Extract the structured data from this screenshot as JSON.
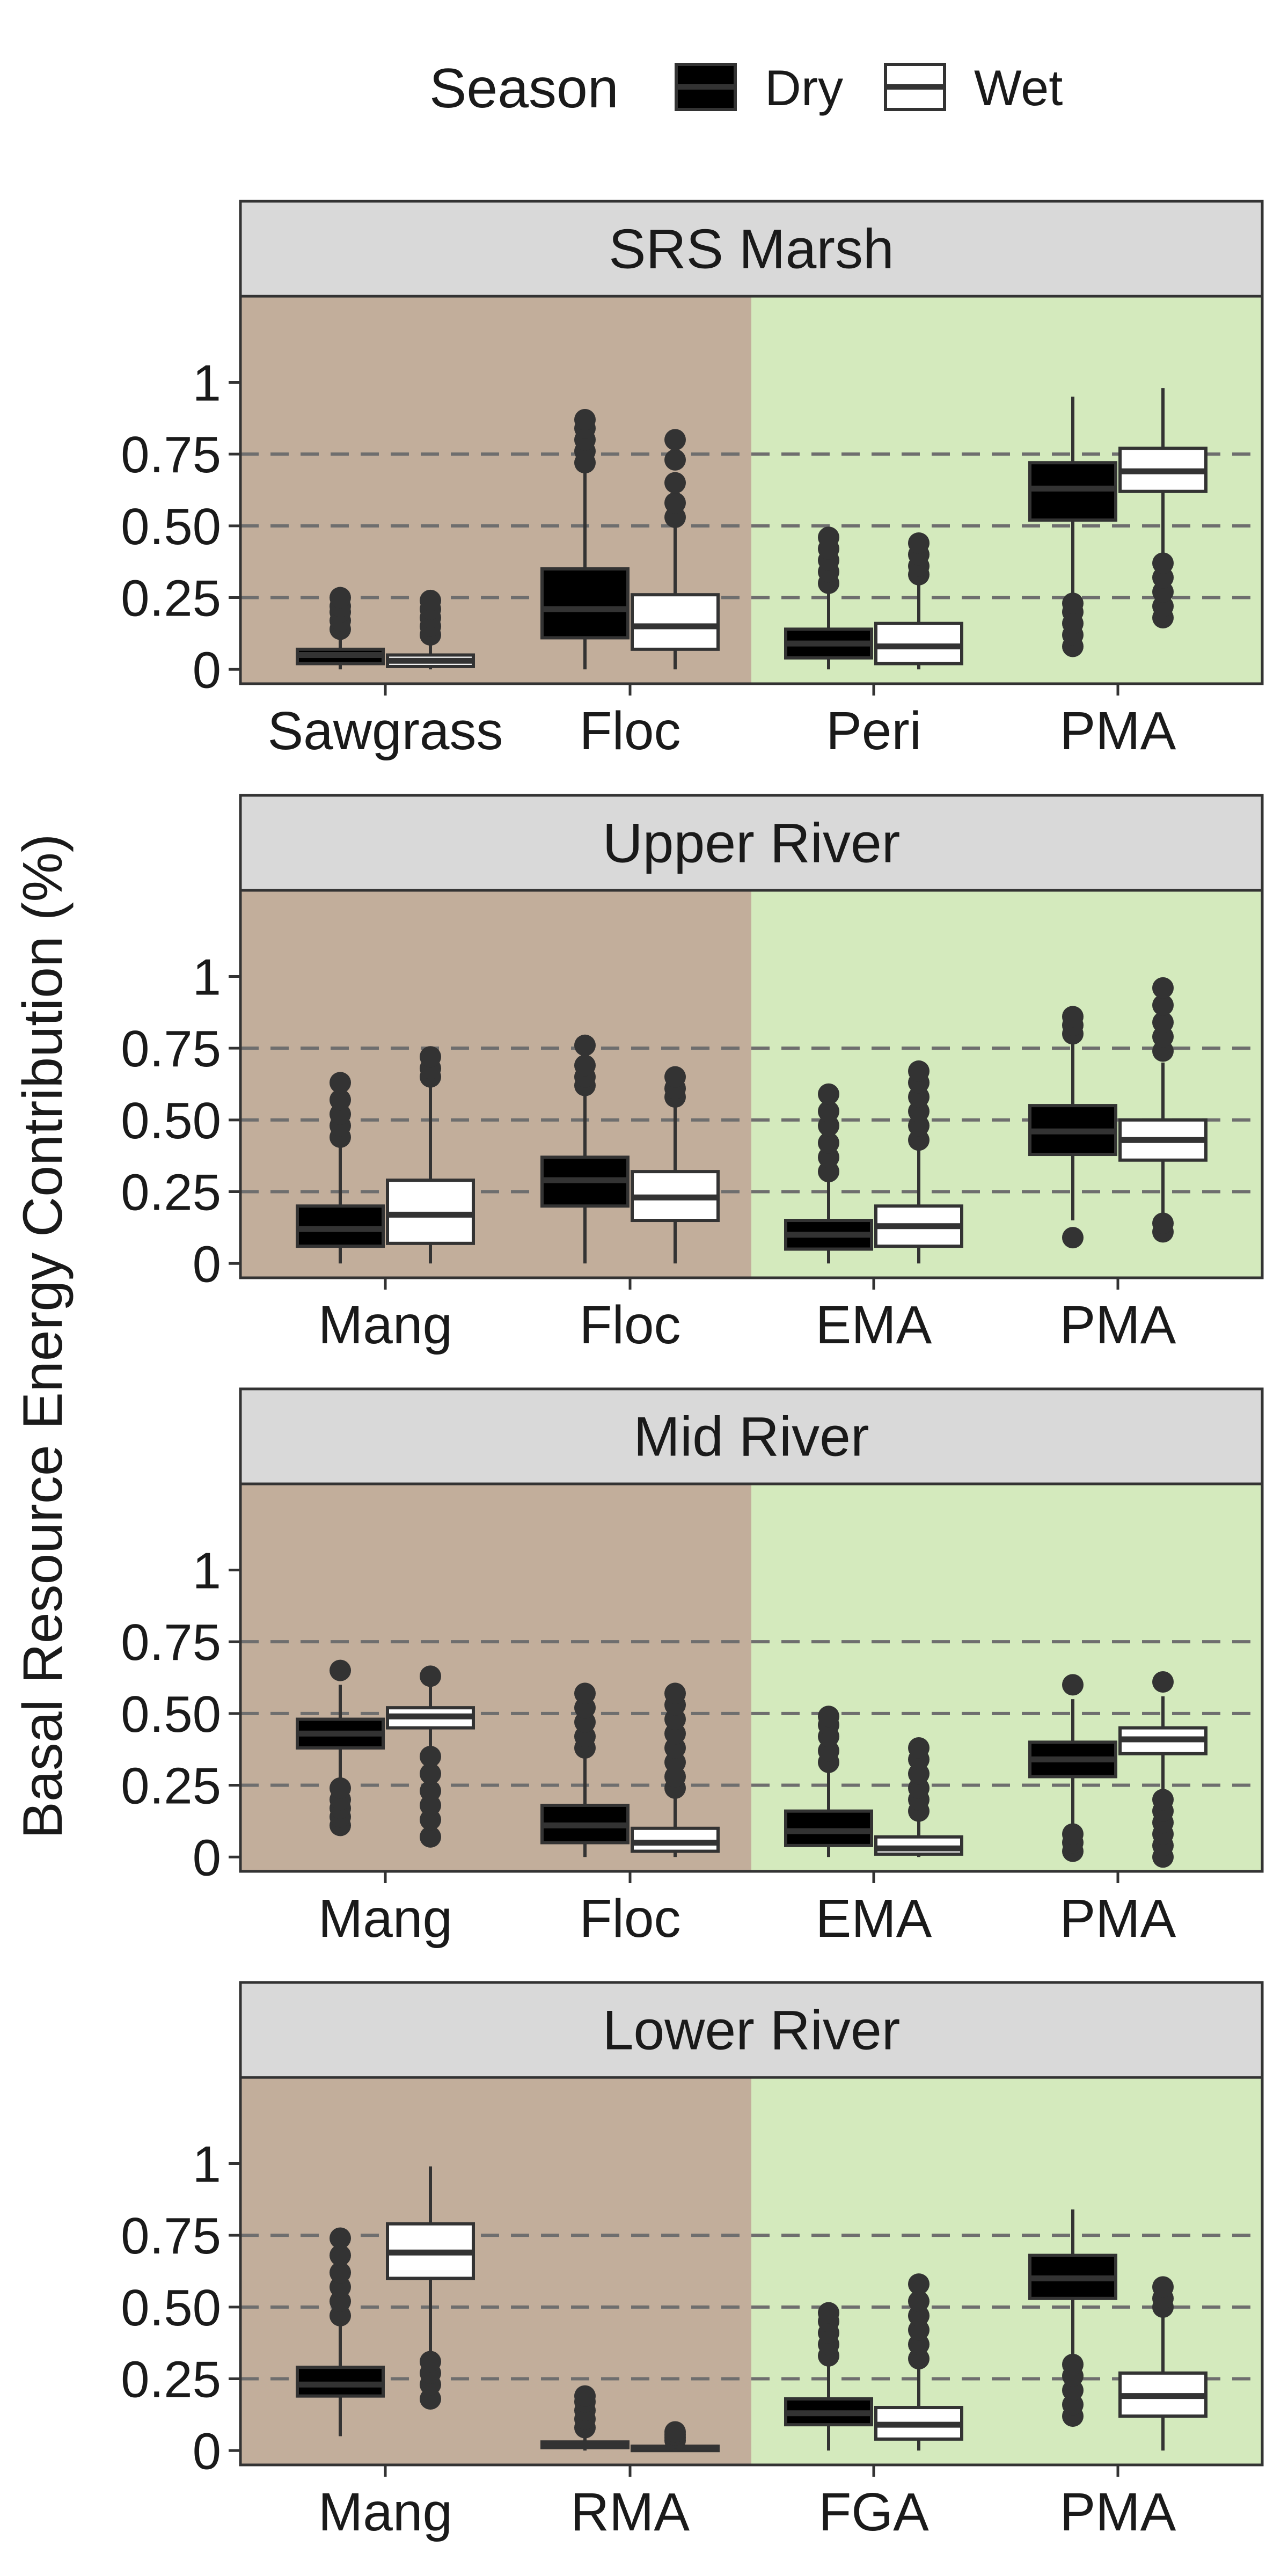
{
  "legend": {
    "title": "Season",
    "items": [
      {
        "label": "Dry",
        "fill": "#000000"
      },
      {
        "label": "Wet",
        "fill": "#ffffff"
      }
    ]
  },
  "ylabel": "Basal Resource Energy Contribution (%)",
  "colors": {
    "allochthonous_bg": "#c2ae9b",
    "autochthonous_bg": "#d4eabd",
    "strip_bg": "#d9d9d9",
    "dry_fill": "#000000",
    "wet_fill": "#ffffff",
    "outline": "#333333",
    "wet_median": "#333333",
    "dry_median": "#333333"
  },
  "chart_data": [
    {
      "type": "boxplot",
      "title": "SRS Marsh",
      "categories": [
        "Sawgrass",
        "Floc",
        "Peri",
        "PMA"
      ],
      "ylim": [
        -0.05,
        1.3
      ],
      "yticks": [
        0,
        0.25,
        0.5,
        0.75,
        1
      ],
      "ytick_labels": [
        "0",
        "0.25",
        "0.50",
        "0.75",
        "1"
      ],
      "gridlines": [
        0.25,
        0.5,
        0.75
      ],
      "series": [
        {
          "name": "Dry",
          "boxes": [
            {
              "min": 0.0,
              "q1": 0.02,
              "median": 0.05,
              "q3": 0.07,
              "max": 0.12,
              "outliers": [
                0.14,
                0.17,
                0.2,
                0.22,
                0.25
              ]
            },
            {
              "min": 0.0,
              "q1": 0.11,
              "median": 0.21,
              "q3": 0.35,
              "max": 0.7,
              "outliers": [
                0.72,
                0.76,
                0.8,
                0.84,
                0.87
              ]
            },
            {
              "min": 0.0,
              "q1": 0.04,
              "median": 0.09,
              "q3": 0.14,
              "max": 0.28,
              "outliers": [
                0.3,
                0.34,
                0.38,
                0.42,
                0.46
              ]
            },
            {
              "min": 0.23,
              "q1": 0.52,
              "median": 0.63,
              "q3": 0.72,
              "max": 0.95,
              "outliers": [
                0.08,
                0.12,
                0.16,
                0.2,
                0.23
              ]
            }
          ]
        },
        {
          "name": "Wet",
          "boxes": [
            {
              "min": 0.0,
              "q1": 0.01,
              "median": 0.03,
              "q3": 0.05,
              "max": 0.1,
              "outliers": [
                0.12,
                0.15,
                0.18,
                0.21,
                0.24
              ]
            },
            {
              "min": 0.0,
              "q1": 0.07,
              "median": 0.15,
              "q3": 0.26,
              "max": 0.5,
              "outliers": [
                0.53,
                0.58,
                0.65,
                0.73,
                0.8
              ]
            },
            {
              "min": 0.0,
              "q1": 0.02,
              "median": 0.08,
              "q3": 0.16,
              "max": 0.3,
              "outliers": [
                0.33,
                0.36,
                0.4,
                0.44
              ]
            },
            {
              "min": 0.38,
              "q1": 0.62,
              "median": 0.69,
              "q3": 0.77,
              "max": 0.98,
              "outliers": [
                0.18,
                0.22,
                0.27,
                0.32,
                0.37
              ]
            }
          ]
        }
      ]
    },
    {
      "type": "boxplot",
      "title": "Upper River",
      "categories": [
        "Mang",
        "Floc",
        "EMA",
        "PMA"
      ],
      "ylim": [
        -0.05,
        1.3
      ],
      "yticks": [
        0,
        0.25,
        0.5,
        0.75,
        1
      ],
      "ytick_labels": [
        "0",
        "0.25",
        "0.50",
        "0.75",
        "1"
      ],
      "gridlines": [
        0.25,
        0.5,
        0.75
      ],
      "series": [
        {
          "name": "Dry",
          "boxes": [
            {
              "min": 0.0,
              "q1": 0.06,
              "median": 0.12,
              "q3": 0.2,
              "max": 0.41,
              "outliers": [
                0.44,
                0.48,
                0.52,
                0.57,
                0.63
              ]
            },
            {
              "min": 0.0,
              "q1": 0.2,
              "median": 0.29,
              "q3": 0.37,
              "max": 0.6,
              "outliers": [
                0.62,
                0.65,
                0.69,
                0.76
              ]
            },
            {
              "min": 0.0,
              "q1": 0.05,
              "median": 0.1,
              "q3": 0.15,
              "max": 0.3,
              "outliers": [
                0.32,
                0.37,
                0.42,
                0.48,
                0.53,
                0.59
              ]
            },
            {
              "min": 0.15,
              "q1": 0.38,
              "median": 0.46,
              "q3": 0.55,
              "max": 0.78,
              "outliers": [
                0.09,
                0.8,
                0.83,
                0.86
              ]
            }
          ]
        },
        {
          "name": "Wet",
          "boxes": [
            {
              "min": 0.0,
              "q1": 0.07,
              "median": 0.17,
              "q3": 0.29,
              "max": 0.62,
              "outliers": [
                0.65,
                0.68,
                0.72
              ]
            },
            {
              "min": 0.0,
              "q1": 0.15,
              "median": 0.23,
              "q3": 0.32,
              "max": 0.56,
              "outliers": [
                0.58,
                0.61,
                0.65
              ]
            },
            {
              "min": 0.0,
              "q1": 0.06,
              "median": 0.13,
              "q3": 0.2,
              "max": 0.4,
              "outliers": [
                0.43,
                0.48,
                0.53,
                0.58,
                0.63,
                0.67
              ]
            },
            {
              "min": 0.17,
              "q1": 0.36,
              "median": 0.43,
              "q3": 0.5,
              "max": 0.7,
              "outliers": [
                0.11,
                0.14,
                0.74,
                0.79,
                0.84,
                0.9,
                0.96
              ]
            }
          ]
        }
      ]
    },
    {
      "type": "boxplot",
      "title": "Mid River",
      "categories": [
        "Mang",
        "Floc",
        "EMA",
        "PMA"
      ],
      "ylim": [
        -0.05,
        1.3
      ],
      "yticks": [
        0,
        0.25,
        0.5,
        0.75,
        1
      ],
      "ytick_labels": [
        "0",
        "0.25",
        "0.50",
        "0.75",
        "1"
      ],
      "gridlines": [
        0.25,
        0.5,
        0.75
      ],
      "series": [
        {
          "name": "Dry",
          "boxes": [
            {
              "min": 0.26,
              "q1": 0.38,
              "median": 0.43,
              "q3": 0.48,
              "max": 0.6,
              "outliers": [
                0.11,
                0.14,
                0.17,
                0.2,
                0.24,
                0.65
              ]
            },
            {
              "min": 0.0,
              "q1": 0.05,
              "median": 0.11,
              "q3": 0.18,
              "max": 0.36,
              "outliers": [
                0.38,
                0.42,
                0.47,
                0.52,
                0.57
              ]
            },
            {
              "min": 0.0,
              "q1": 0.04,
              "median": 0.09,
              "q3": 0.16,
              "max": 0.3,
              "outliers": [
                0.33,
                0.37,
                0.42,
                0.46,
                0.49
              ]
            },
            {
              "min": 0.1,
              "q1": 0.28,
              "median": 0.34,
              "q3": 0.4,
              "max": 0.55,
              "outliers": [
                0.02,
                0.05,
                0.08,
                0.6
              ]
            }
          ]
        },
        {
          "name": "Wet",
          "boxes": [
            {
              "min": 0.38,
              "q1": 0.45,
              "median": 0.49,
              "q3": 0.52,
              "max": 0.6,
              "outliers": [
                0.07,
                0.13,
                0.18,
                0.23,
                0.29,
                0.35,
                0.63
              ]
            },
            {
              "min": 0.0,
              "q1": 0.02,
              "median": 0.05,
              "q3": 0.1,
              "max": 0.21,
              "outliers": [
                0.24,
                0.28,
                0.33,
                0.38,
                0.43,
                0.48,
                0.53,
                0.57
              ]
            },
            {
              "min": 0.0,
              "q1": 0.01,
              "median": 0.03,
              "q3": 0.07,
              "max": 0.14,
              "outliers": [
                0.16,
                0.2,
                0.24,
                0.29,
                0.34,
                0.38
              ]
            },
            {
              "min": 0.23,
              "q1": 0.36,
              "median": 0.41,
              "q3": 0.45,
              "max": 0.56,
              "outliers": [
                0.0,
                0.04,
                0.08,
                0.12,
                0.16,
                0.2,
                0.61
              ]
            }
          ]
        }
      ]
    },
    {
      "type": "boxplot",
      "title": "Lower River",
      "categories": [
        "Mang",
        "RMA",
        "FGA",
        "PMA"
      ],
      "ylim": [
        -0.05,
        1.3
      ],
      "yticks": [
        0,
        0.25,
        0.5,
        0.75,
        1
      ],
      "ytick_labels": [
        "0",
        "0.25",
        "0.50",
        "0.75",
        "1"
      ],
      "gridlines": [
        0.25,
        0.5,
        0.75
      ],
      "series": [
        {
          "name": "Dry",
          "boxes": [
            {
              "min": 0.05,
              "q1": 0.19,
              "median": 0.23,
              "q3": 0.29,
              "max": 0.44,
              "outliers": [
                0.47,
                0.52,
                0.57,
                0.62,
                0.68,
                0.74
              ]
            },
            {
              "min": 0.0,
              "q1": 0.01,
              "median": 0.02,
              "q3": 0.03,
              "max": 0.06,
              "outliers": [
                0.08,
                0.11,
                0.14,
                0.17,
                0.19
              ]
            },
            {
              "min": 0.0,
              "q1": 0.09,
              "median": 0.13,
              "q3": 0.18,
              "max": 0.3,
              "outliers": [
                0.33,
                0.37,
                0.41,
                0.45,
                0.48
              ]
            },
            {
              "min": 0.33,
              "q1": 0.53,
              "median": 0.6,
              "q3": 0.68,
              "max": 0.84,
              "outliers": [
                0.12,
                0.16,
                0.21,
                0.26,
                0.3
              ]
            }
          ]
        },
        {
          "name": "Wet",
          "boxes": [
            {
              "min": 0.34,
              "q1": 0.6,
              "median": 0.69,
              "q3": 0.79,
              "max": 0.99,
              "outliers": [
                0.18,
                0.23,
                0.27,
                0.31
              ]
            },
            {
              "min": 0.0,
              "q1": 0.0,
              "median": 0.01,
              "q3": 0.015,
              "max": 0.025,
              "outliers": [
                0.035,
                0.045,
                0.055,
                0.065
              ]
            },
            {
              "min": 0.0,
              "q1": 0.04,
              "median": 0.09,
              "q3": 0.15,
              "max": 0.29,
              "outliers": [
                0.32,
                0.37,
                0.42,
                0.47,
                0.52,
                0.58
              ]
            },
            {
              "min": 0.0,
              "q1": 0.12,
              "median": 0.19,
              "q3": 0.27,
              "max": 0.47,
              "outliers": [
                0.5,
                0.53,
                0.57
              ]
            }
          ]
        }
      ]
    }
  ]
}
